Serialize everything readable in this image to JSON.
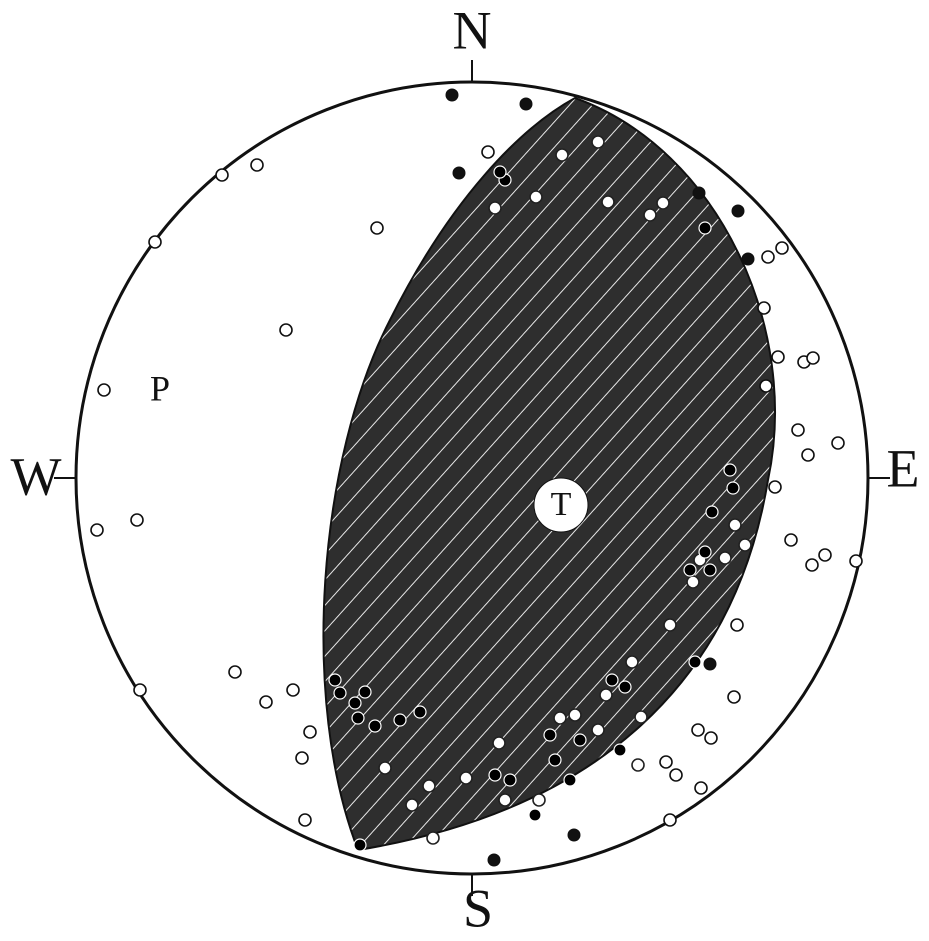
{
  "labels": {
    "north": "N",
    "south": "S",
    "east": "E",
    "west": "W"
  },
  "axes": {
    "p": "P",
    "t": "T"
  }
}
